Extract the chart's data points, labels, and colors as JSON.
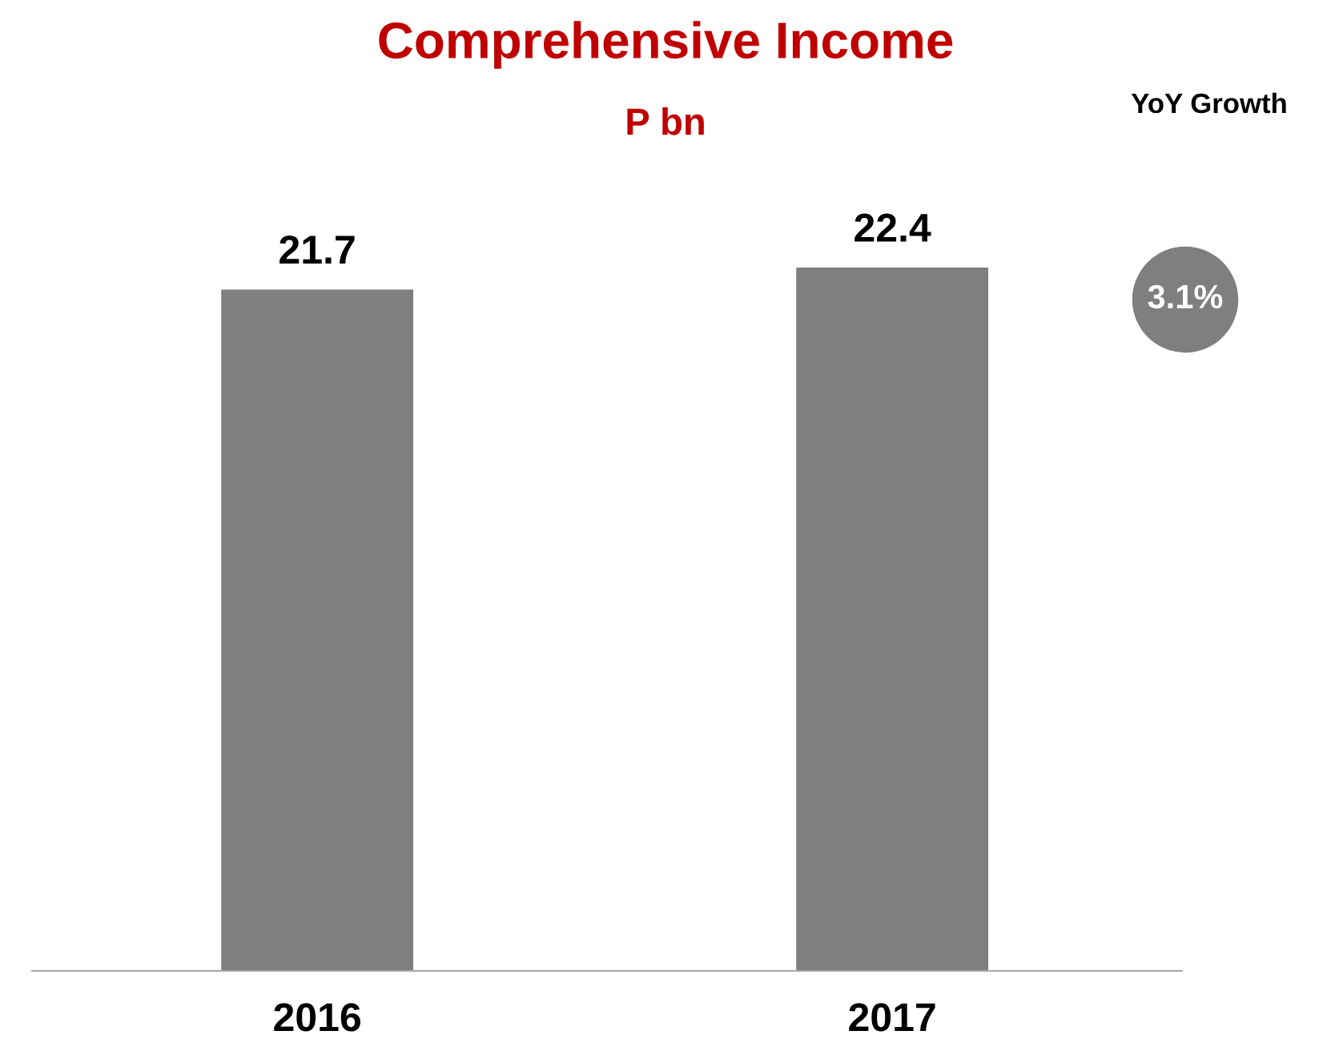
{
  "chart_data": {
    "type": "bar",
    "title": "Comprehensive Income",
    "subtitle": "P bn",
    "categories": [
      "2016",
      "2017"
    ],
    "values": [
      21.7,
      22.4
    ],
    "color": "#7f7f7f",
    "data_labels": true,
    "grid": false,
    "legend": false,
    "annotations": [
      "YoY Growth",
      "3.1%"
    ]
  }
}
